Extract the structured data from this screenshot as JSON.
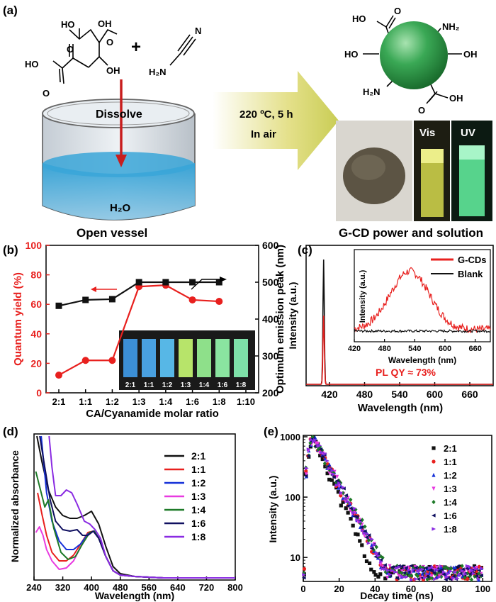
{
  "panels": {
    "a": {
      "label": "(a)",
      "dissolve": "Dissolve",
      "water": "H₂O",
      "vessel_caption": "Open vessel",
      "condition": "220 ºC, 5 h",
      "atmosphere": "In air",
      "vis": "Vis",
      "uv": "UV",
      "product_caption": "G-CD power and solution",
      "groups": {
        "cooh": "HO",
        "oh": "OH",
        "nh2": "NH₂",
        "h2n": "H₂N",
        "n": "N",
        "o": "O"
      },
      "citric_acid": {
        "oh1": "OH",
        "oh2": "OH",
        "oh3": "OH",
        "ho1": "HO",
        "ho2": "HO",
        "o1": "O",
        "o2": "O",
        "o3": "O"
      },
      "cyanamide": {
        "n": "N",
        "h2n": "H₂N"
      },
      "plus": "+",
      "dot": {
        "ho_top": "HO",
        "ho_left": "HO",
        "oh_right": "OH",
        "oh_bottom": "OH",
        "nh2_top": "NH₂",
        "h2n_bottom": "H₂N",
        "o_top": "O",
        "o_bottom": "O"
      }
    },
    "b": {
      "label": "(b)",
      "xlabel": "CA/Cyanamide molar ratio",
      "ylabel_left": "Quantum yield (%)",
      "ylabel_right": "Optimum emission peak (nm)",
      "inset_labels": [
        "2:1",
        "1:1",
        "1:2",
        "1:3",
        "1:4",
        "1:6",
        "1:8"
      ]
    },
    "c": {
      "label": "(c)",
      "xlabel": "Wavelength (nm)",
      "ylabel": "Intensity (a.u.)",
      "annotation": "PL QY ≈ 73%",
      "inset_xlabel": "Wavelength (nm)",
      "inset_ylabel": "Intensity (a.u.)",
      "legend": [
        "G-CDs",
        "Blank"
      ]
    },
    "d": {
      "label": "(d)",
      "xlabel": "Wavelength (nm)",
      "ylabel": "Normalized absorbance"
    },
    "e": {
      "label": "(e)",
      "xlabel": "Decay time (ns)",
      "ylabel": "Intensity (a.u.)"
    }
  },
  "colors": {
    "red": "#e8201e",
    "black": "#111111",
    "green_dot": "#2e9a46",
    "arrow_yellow": "#d6d86a",
    "water_blue": "#3aa6d8"
  },
  "chart_data": [
    {
      "id": "b",
      "type": "line",
      "categories": [
        "2:1",
        "1:1",
        "1:2",
        "1:3",
        "1:4",
        "1:6",
        "1:8",
        "1:10"
      ],
      "series": [
        {
          "name": "Quantum yield (%)",
          "axis": "left",
          "color": "#e8201e",
          "values": [
            12,
            22,
            22,
            72,
            73,
            63,
            62,
            null
          ]
        },
        {
          "name": "Optimum emission peak (nm)",
          "axis": "right",
          "color": "#111111",
          "values": [
            436,
            452,
            454,
            500,
            500,
            500,
            500,
            null
          ]
        }
      ],
      "ylim_left": [
        0,
        100
      ],
      "ylim_right": [
        200,
        600
      ],
      "yticks_left": [
        0,
        20,
        40,
        60,
        80,
        100
      ],
      "yticks_right": [
        200,
        300,
        400,
        500,
        600
      ]
    },
    {
      "id": "c",
      "type": "line",
      "xlim": [
        380,
        700
      ],
      "xticks": [
        420,
        480,
        540,
        600,
        660
      ],
      "series": [
        {
          "name": "Blank",
          "color": "#111111",
          "peak_x": 410,
          "peak_y": 1.0
        },
        {
          "name": "G-CDs",
          "color": "#e8201e",
          "peak_x": 410,
          "peak_y": 0.55
        }
      ],
      "inset": {
        "xlim": [
          420,
          690
        ],
        "xticks": [
          420,
          480,
          540,
          600,
          660
        ],
        "series": [
          {
            "name": "G-CDs",
            "color": "#e8201e",
            "center": 530,
            "width": 55,
            "height": 0.72,
            "base": 0.1
          },
          {
            "name": "Blank",
            "color": "#111111",
            "center": 530,
            "width": 55,
            "height": 0.0,
            "base": 0.08
          }
        ]
      }
    },
    {
      "id": "d",
      "type": "line",
      "xlim": [
        240,
        800
      ],
      "xticks": [
        240,
        320,
        400,
        480,
        560,
        640,
        720,
        800
      ],
      "series": [
        {
          "name": "2:1",
          "color": "#111111",
          "x": [
            248,
            262,
            280,
            300,
            320,
            340,
            360,
            380,
            400,
            420,
            440,
            460,
            480,
            520,
            600,
            700,
            800
          ],
          "y": [
            1.0,
            0.82,
            0.62,
            0.5,
            0.44,
            0.42,
            0.42,
            0.44,
            0.47,
            0.38,
            0.22,
            0.08,
            0.03,
            0.01,
            0.0,
            0.0,
            0.0
          ]
        },
        {
          "name": "1:1",
          "color": "#e8201e",
          "x": [
            250,
            262,
            275,
            290,
            310,
            330,
            350,
            370,
            390,
            405,
            420,
            440,
            460,
            480,
            520,
            600,
            700,
            800
          ],
          "y": [
            0.6,
            0.45,
            0.3,
            0.18,
            0.12,
            0.12,
            0.16,
            0.24,
            0.32,
            0.33,
            0.28,
            0.15,
            0.05,
            0.02,
            0.01,
            0.0,
            0.0,
            0.0
          ]
        },
        {
          "name": "1:2",
          "color": "#1530d8",
          "x": [
            260,
            275,
            290,
            310,
            330,
            350,
            370,
            390,
            405,
            420,
            440,
            460,
            480,
            520,
            600,
            700,
            800
          ],
          "y": [
            1.0,
            0.6,
            0.4,
            0.26,
            0.2,
            0.2,
            0.24,
            0.31,
            0.33,
            0.28,
            0.15,
            0.05,
            0.02,
            0.01,
            0.0,
            0.0,
            0.0
          ]
        },
        {
          "name": "1:3",
          "color": "#e83ae0",
          "x": [
            245,
            255,
            265,
            275,
            290,
            310,
            330,
            350,
            370,
            390,
            405,
            420,
            440,
            460,
            480,
            520,
            600,
            700,
            800
          ],
          "y": [
            0.32,
            0.36,
            0.3,
            0.2,
            0.12,
            0.06,
            0.07,
            0.12,
            0.22,
            0.3,
            0.33,
            0.28,
            0.15,
            0.05,
            0.02,
            0.01,
            0.0,
            0.0,
            0.0
          ]
        },
        {
          "name": "1:4",
          "color": "#1e7a28",
          "x": [
            245,
            258,
            270,
            280,
            295,
            315,
            335,
            355,
            375,
            395,
            408,
            420,
            440,
            460,
            480,
            520,
            600,
            700,
            800
          ],
          "y": [
            0.75,
            0.62,
            0.5,
            0.55,
            0.35,
            0.18,
            0.13,
            0.15,
            0.24,
            0.32,
            0.33,
            0.28,
            0.15,
            0.05,
            0.02,
            0.01,
            0.0,
            0.0,
            0.0
          ]
        },
        {
          "name": "1:6",
          "color": "#101060",
          "x": [
            256,
            270,
            285,
            300,
            320,
            340,
            360,
            375,
            390,
            405,
            420,
            440,
            460,
            480,
            520,
            600,
            700,
            800
          ],
          "y": [
            1.0,
            0.78,
            0.55,
            0.4,
            0.34,
            0.33,
            0.34,
            0.3,
            0.3,
            0.33,
            0.28,
            0.15,
            0.05,
            0.02,
            0.01,
            0.0,
            0.0,
            0.0
          ]
        },
        {
          "name": "1:8",
          "color": "#8a2be2",
          "x": [
            282,
            290,
            300,
            315,
            330,
            345,
            360,
            380,
            395,
            410,
            425,
            440,
            460,
            480,
            520,
            600,
            700,
            800
          ],
          "y": [
            1.0,
            0.78,
            0.58,
            0.58,
            0.62,
            0.6,
            0.52,
            0.4,
            0.38,
            0.34,
            0.28,
            0.15,
            0.05,
            0.02,
            0.01,
            0.0,
            0.0,
            0.0
          ]
        }
      ],
      "ylim": [
        0,
        1.0
      ]
    },
    {
      "id": "e",
      "type": "scatter",
      "xlim": [
        0,
        105
      ],
      "xticks": [
        0,
        20,
        40,
        60,
        80,
        100
      ],
      "ylim_log": [
        4,
        1000
      ],
      "yticks": [
        10,
        100,
        1000
      ],
      "noise_floor": 5,
      "series": [
        {
          "name": "2:1",
          "color": "#111111",
          "marker": "square",
          "tau": 6.5
        },
        {
          "name": "1:1",
          "color": "#e8201e",
          "marker": "circle",
          "tau": 7.8
        },
        {
          "name": "1:2",
          "color": "#1530d8",
          "marker": "triangle-up",
          "tau": 7.9
        },
        {
          "name": "1:3",
          "color": "#e83ae0",
          "marker": "triangle-down",
          "tau": 8.0
        },
        {
          "name": "1:4",
          "color": "#1e7a28",
          "marker": "diamond",
          "tau": 8.2
        },
        {
          "name": "1:6",
          "color": "#101060",
          "marker": "triangle-left",
          "tau": 8.0
        },
        {
          "name": "1:8",
          "color": "#8a2be2",
          "marker": "triangle-right",
          "tau": 8.1
        }
      ]
    }
  ]
}
